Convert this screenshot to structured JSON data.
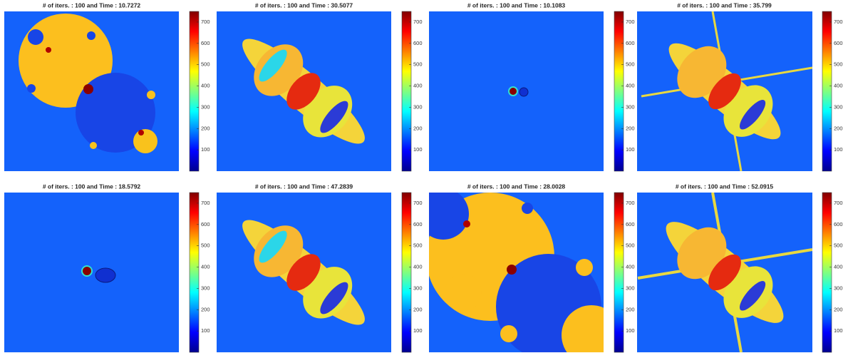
{
  "chart_data": [
    {
      "type": "image",
      "title": "# of iters. : 100 and Time : 10.7272",
      "ylim": [
        0,
        750
      ],
      "yticks": [
        100,
        200,
        300,
        400,
        500,
        600,
        700
      ]
    },
    {
      "type": "image",
      "title": "# of iters. : 100 and Time : 30.5077",
      "ylim": [
        0,
        750
      ],
      "yticks": [
        100,
        200,
        300,
        400,
        500,
        600,
        700
      ]
    },
    {
      "type": "image",
      "title": "# of iters. : 100 and Time : 10.1083",
      "ylim": [
        0,
        750
      ],
      "yticks": [
        100,
        200,
        300,
        400,
        500,
        600,
        700
      ]
    },
    {
      "type": "image",
      "title": "# of iters. : 100 and Time : 35.799",
      "ylim": [
        0,
        750
      ],
      "yticks": [
        100,
        200,
        300,
        400,
        500,
        600,
        700
      ]
    },
    {
      "type": "image",
      "title": "# of iters. : 100 and Time : 18.5792",
      "ylim": [
        0,
        750
      ],
      "yticks": [
        100,
        200,
        300,
        400,
        500,
        600,
        700
      ]
    },
    {
      "type": "image",
      "title": "# of iters. : 100 and Time : 47.2839",
      "ylim": [
        0,
        750
      ],
      "yticks": [
        100,
        200,
        300,
        400,
        500,
        600,
        700
      ]
    },
    {
      "type": "image",
      "title": "# of iters. : 100 and Time : 28.0028",
      "ylim": [
        0,
        750
      ],
      "yticks": [
        100,
        200,
        300,
        400,
        500,
        600,
        700
      ]
    },
    {
      "type": "image",
      "title": "# of iters. : 100 and Time : 52.0915",
      "ylim": [
        0,
        750
      ],
      "yticks": [
        100,
        200,
        300,
        400,
        500,
        600,
        700
      ]
    }
  ]
}
